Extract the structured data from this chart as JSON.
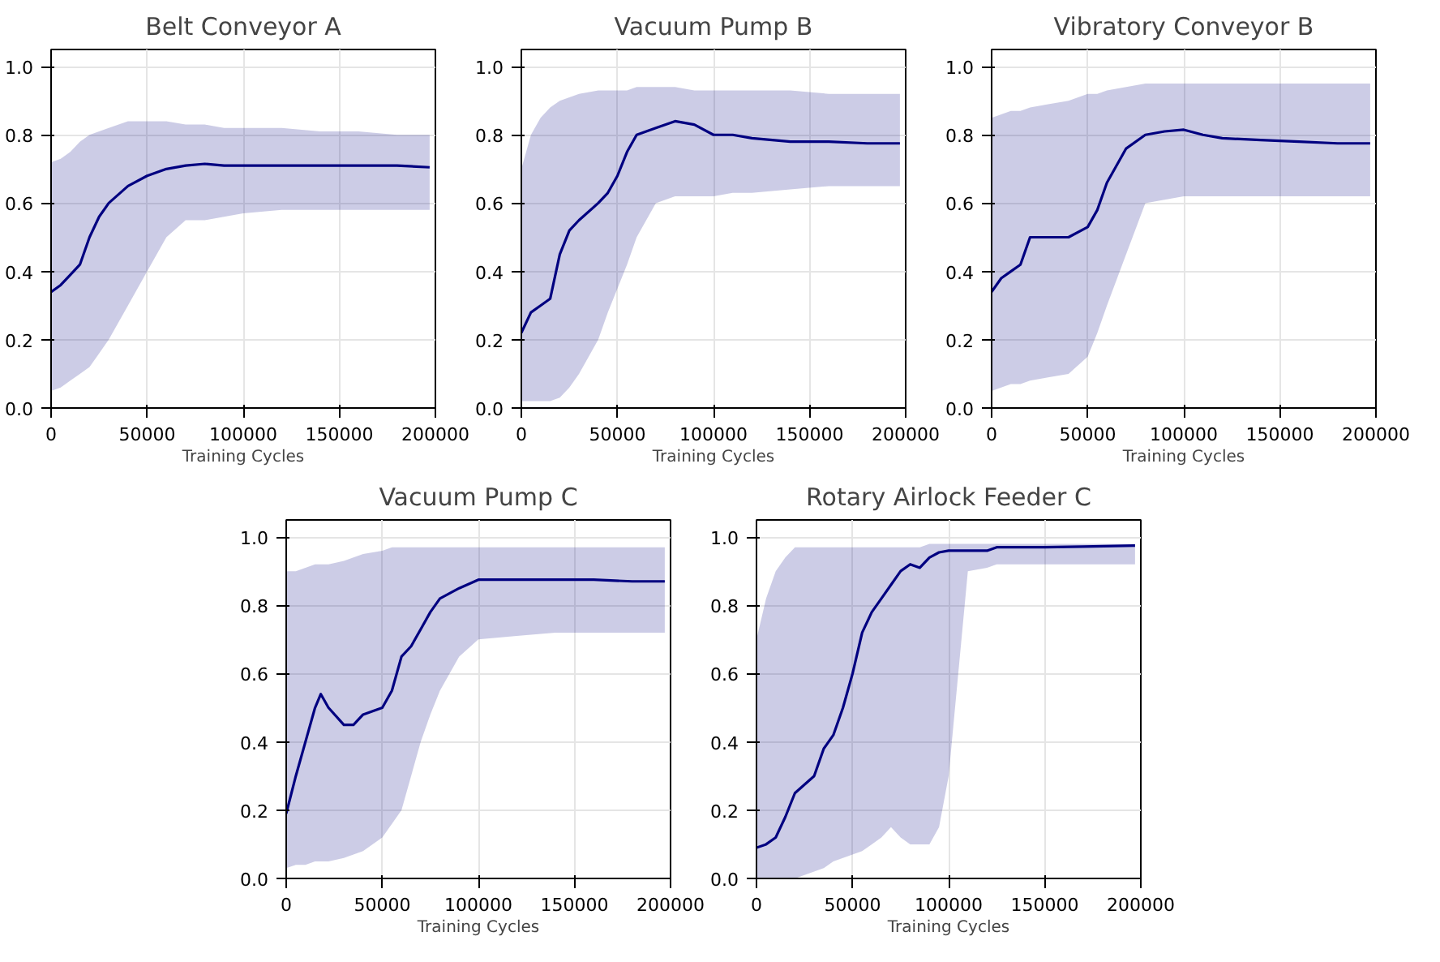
{
  "chart_data": [
    {
      "type": "line",
      "title": "Belt Conveyor A",
      "xlabel": "Training Cycles",
      "xlim": [
        0,
        200000
      ],
      "xticks": [
        0,
        50000,
        100000,
        150000,
        200000
      ],
      "ylim": [
        0,
        1.05
      ],
      "yticks": [
        {
          "value": 0,
          "label": "0.0"
        },
        {
          "value": 0.2,
          "label": "0.2"
        },
        {
          "value": 0.4,
          "label": "0.4"
        },
        {
          "value": 0.6,
          "label": "0.6"
        },
        {
          "value": 0.8,
          "label": "0.8"
        },
        {
          "value": 1.0,
          "label": "1.0"
        }
      ],
      "grid": true,
      "x": [
        0,
        5000,
        10000,
        15000,
        20000,
        25000,
        30000,
        40000,
        50000,
        60000,
        70000,
        80000,
        90000,
        100000,
        120000,
        140000,
        160000,
        180000,
        197000
      ],
      "series": [
        {
          "color": "#000080",
          "values": [
            0.34,
            0.36,
            0.39,
            0.42,
            0.5,
            0.56,
            0.6,
            0.65,
            0.68,
            0.7,
            0.71,
            0.715,
            0.71,
            0.71,
            0.71,
            0.71,
            0.71,
            0.71,
            0.705
          ],
          "lower": [
            0.05,
            0.06,
            0.08,
            0.1,
            0.12,
            0.16,
            0.2,
            0.3,
            0.4,
            0.5,
            0.55,
            0.55,
            0.56,
            0.57,
            0.58,
            0.58,
            0.58,
            0.58,
            0.58
          ],
          "upper": [
            0.72,
            0.73,
            0.75,
            0.78,
            0.8,
            0.81,
            0.82,
            0.84,
            0.84,
            0.84,
            0.83,
            0.83,
            0.82,
            0.82,
            0.82,
            0.81,
            0.81,
            0.8,
            0.8
          ]
        }
      ]
    },
    {
      "type": "line",
      "title": "Vacuum Pump B",
      "xlabel": "Training Cycles",
      "xlim": [
        0,
        200000
      ],
      "xticks": [
        0,
        50000,
        100000,
        150000,
        200000
      ],
      "ylim": [
        0,
        1.05
      ],
      "yticks": [
        {
          "value": 0,
          "label": "0.0"
        },
        {
          "value": 0.2,
          "label": "0.2"
        },
        {
          "value": 0.4,
          "label": "0.4"
        },
        {
          "value": 0.6,
          "label": "0.6"
        },
        {
          "value": 0.8,
          "label": "0.8"
        },
        {
          "value": 1.0,
          "label": "1.0"
        }
      ],
      "grid": true,
      "x": [
        0,
        5000,
        10000,
        15000,
        20000,
        25000,
        30000,
        40000,
        45000,
        50000,
        55000,
        60000,
        70000,
        80000,
        90000,
        100000,
        110000,
        120000,
        140000,
        160000,
        180000,
        197000
      ],
      "series": [
        {
          "color": "#000080",
          "values": [
            0.22,
            0.28,
            0.3,
            0.32,
            0.45,
            0.52,
            0.55,
            0.6,
            0.63,
            0.68,
            0.75,
            0.8,
            0.82,
            0.84,
            0.83,
            0.8,
            0.8,
            0.79,
            0.78,
            0.78,
            0.775,
            0.775
          ],
          "lower": [
            0.02,
            0.02,
            0.02,
            0.02,
            0.03,
            0.06,
            0.1,
            0.2,
            0.28,
            0.35,
            0.42,
            0.5,
            0.6,
            0.62,
            0.62,
            0.62,
            0.63,
            0.63,
            0.64,
            0.65,
            0.65,
            0.65
          ],
          "upper": [
            0.7,
            0.8,
            0.85,
            0.88,
            0.9,
            0.91,
            0.92,
            0.93,
            0.93,
            0.93,
            0.93,
            0.94,
            0.94,
            0.94,
            0.93,
            0.93,
            0.93,
            0.93,
            0.93,
            0.92,
            0.92,
            0.92
          ]
        }
      ]
    },
    {
      "type": "line",
      "title": "Vibratory Conveyor B",
      "xlabel": "Training Cycles",
      "xlim": [
        0,
        200000
      ],
      "xticks": [
        0,
        50000,
        100000,
        150000,
        200000
      ],
      "ylim": [
        0,
        1.05
      ],
      "yticks": [
        {
          "value": 0,
          "label": "0.0"
        },
        {
          "value": 0.2,
          "label": "0.2"
        },
        {
          "value": 0.4,
          "label": "0.4"
        },
        {
          "value": 0.6,
          "label": "0.6"
        },
        {
          "value": 0.8,
          "label": "0.8"
        },
        {
          "value": 1.0,
          "label": "1.0"
        }
      ],
      "grid": true,
      "x": [
        0,
        5000,
        10000,
        15000,
        20000,
        30000,
        40000,
        50000,
        55000,
        60000,
        70000,
        80000,
        90000,
        100000,
        110000,
        120000,
        140000,
        160000,
        180000,
        197000
      ],
      "series": [
        {
          "color": "#000080",
          "values": [
            0.34,
            0.38,
            0.4,
            0.42,
            0.5,
            0.5,
            0.5,
            0.53,
            0.58,
            0.66,
            0.76,
            0.8,
            0.81,
            0.815,
            0.8,
            0.79,
            0.785,
            0.78,
            0.775,
            0.775
          ],
          "lower": [
            0.05,
            0.06,
            0.07,
            0.07,
            0.08,
            0.09,
            0.1,
            0.15,
            0.22,
            0.3,
            0.45,
            0.6,
            0.61,
            0.62,
            0.62,
            0.62,
            0.62,
            0.62,
            0.62,
            0.62
          ],
          "upper": [
            0.85,
            0.86,
            0.87,
            0.87,
            0.88,
            0.89,
            0.9,
            0.92,
            0.92,
            0.93,
            0.94,
            0.95,
            0.95,
            0.95,
            0.95,
            0.95,
            0.95,
            0.95,
            0.95,
            0.95
          ]
        }
      ]
    },
    {
      "type": "line",
      "title": "Vacuum Pump C",
      "xlabel": "Training Cycles",
      "xlim": [
        0,
        200000
      ],
      "xticks": [
        0,
        50000,
        100000,
        150000,
        200000
      ],
      "ylim": [
        0,
        1.05
      ],
      "yticks": [
        {
          "value": 0,
          "label": "0.0"
        },
        {
          "value": 0.2,
          "label": "0.2"
        },
        {
          "value": 0.4,
          "label": "0.4"
        },
        {
          "value": 0.6,
          "label": "0.6"
        },
        {
          "value": 0.8,
          "label": "0.8"
        },
        {
          "value": 1.0,
          "label": "1.0"
        }
      ],
      "grid": true,
      "x": [
        0,
        5000,
        10000,
        15000,
        18000,
        22000,
        30000,
        35000,
        40000,
        50000,
        55000,
        60000,
        65000,
        70000,
        75000,
        80000,
        90000,
        100000,
        120000,
        140000,
        160000,
        180000,
        197000
      ],
      "series": [
        {
          "color": "#000080",
          "values": [
            0.19,
            0.3,
            0.4,
            0.5,
            0.54,
            0.5,
            0.45,
            0.45,
            0.48,
            0.5,
            0.55,
            0.65,
            0.68,
            0.73,
            0.78,
            0.82,
            0.85,
            0.875,
            0.875,
            0.875,
            0.875,
            0.87,
            0.87
          ],
          "lower": [
            0.03,
            0.04,
            0.04,
            0.05,
            0.05,
            0.05,
            0.06,
            0.07,
            0.08,
            0.12,
            0.16,
            0.2,
            0.3,
            0.4,
            0.48,
            0.55,
            0.65,
            0.7,
            0.71,
            0.72,
            0.72,
            0.72,
            0.72
          ],
          "upper": [
            0.9,
            0.9,
            0.91,
            0.92,
            0.92,
            0.92,
            0.93,
            0.94,
            0.95,
            0.96,
            0.97,
            0.97,
            0.97,
            0.97,
            0.97,
            0.97,
            0.97,
            0.97,
            0.97,
            0.97,
            0.97,
            0.97,
            0.97
          ]
        }
      ]
    },
    {
      "type": "line",
      "title": "Rotary Airlock Feeder C",
      "xlabel": "Training Cycles",
      "xlim": [
        0,
        200000
      ],
      "xticks": [
        0,
        50000,
        100000,
        150000,
        200000
      ],
      "ylim": [
        0,
        1.05
      ],
      "yticks": [
        {
          "value": 0,
          "label": "0.0"
        },
        {
          "value": 0.2,
          "label": "0.2"
        },
        {
          "value": 0.4,
          "label": "0.4"
        },
        {
          "value": 0.6,
          "label": "0.6"
        },
        {
          "value": 0.8,
          "label": "0.8"
        },
        {
          "value": 1.0,
          "label": "1.0"
        }
      ],
      "grid": true,
      "x": [
        0,
        5000,
        10000,
        15000,
        20000,
        30000,
        35000,
        40000,
        45000,
        50000,
        55000,
        60000,
        65000,
        70000,
        75000,
        80000,
        85000,
        90000,
        95000,
        100000,
        110000,
        120000,
        125000,
        150000,
        170000,
        197000
      ],
      "series": [
        {
          "color": "#000080",
          "values": [
            0.09,
            0.1,
            0.12,
            0.18,
            0.25,
            0.3,
            0.38,
            0.42,
            0.5,
            0.6,
            0.72,
            0.78,
            0.82,
            0.86,
            0.9,
            0.92,
            0.91,
            0.94,
            0.955,
            0.96,
            0.96,
            0.96,
            0.97,
            0.97,
            0.972,
            0.975
          ],
          "lower": [
            0.0,
            0.0,
            0.0,
            0.0,
            0.0,
            0.02,
            0.03,
            0.05,
            0.06,
            0.07,
            0.08,
            0.1,
            0.12,
            0.15,
            0.12,
            0.1,
            0.1,
            0.1,
            0.15,
            0.3,
            0.9,
            0.91,
            0.92,
            0.92,
            0.92,
            0.92
          ],
          "upper": [
            0.7,
            0.82,
            0.9,
            0.94,
            0.97,
            0.97,
            0.97,
            0.97,
            0.97,
            0.97,
            0.97,
            0.97,
            0.97,
            0.97,
            0.97,
            0.97,
            0.97,
            0.98,
            0.98,
            0.98,
            0.98,
            0.98,
            0.98,
            0.98,
            0.98,
            0.98
          ]
        }
      ]
    }
  ]
}
